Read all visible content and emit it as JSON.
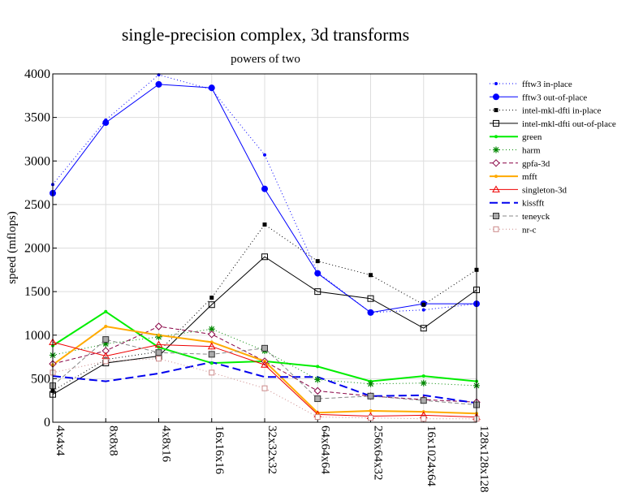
{
  "chart_data": {
    "type": "line",
    "title": "single-precision complex, 3d transforms",
    "subtitle": "powers of two",
    "xlabel": "",
    "ylabel": "speed (mflops)",
    "ylim": [
      0,
      4000
    ],
    "yticks": [
      0,
      500,
      1000,
      1500,
      2000,
      2500,
      3000,
      3500,
      4000
    ],
    "grid": true,
    "legend_position": "right",
    "categories": [
      "4x4x4",
      "8x8x8",
      "4x8x16",
      "16x16x16",
      "32x32x32",
      "64x64x64",
      "256x64x32",
      "16x1024x64",
      "128x128x128"
    ],
    "series": [
      {
        "name": "fftw3 in-place",
        "color": "#0000ff",
        "dash": "1,3",
        "width": 1,
        "marker": "dot-small",
        "values": [
          2730,
          3470,
          3990,
          3820,
          3070,
          1720,
          1260,
          1290,
          1360
        ]
      },
      {
        "name": "fftw3 out-of-place",
        "color": "#0000ff",
        "dash": "",
        "width": 1,
        "marker": "dot-large",
        "values": [
          2630,
          3440,
          3880,
          3840,
          2680,
          1710,
          1260,
          1360,
          1360
        ]
      },
      {
        "name": "intel-mkl-dfti in-place",
        "color": "#000000",
        "dash": "1,3",
        "width": 1,
        "marker": "square-filled",
        "values": [
          360,
          720,
          810,
          1430,
          2270,
          1850,
          1690,
          1350,
          1750
        ]
      },
      {
        "name": "intel-mkl-dfti out-of-place",
        "color": "#000000",
        "dash": "",
        "width": 1,
        "marker": "square-open",
        "values": [
          320,
          680,
          760,
          1350,
          1900,
          1500,
          1420,
          1080,
          1520
        ]
      },
      {
        "name": "green",
        "color": "#00ee00",
        "dash": "",
        "width": 2,
        "marker": "dot-small",
        "values": [
          880,
          1270,
          860,
          680,
          700,
          640,
          470,
          530,
          470
        ]
      },
      {
        "name": "harm",
        "color": "#008800",
        "dash": "1,3",
        "width": 1,
        "marker": "star",
        "values": [
          770,
          900,
          980,
          1070,
          820,
          490,
          440,
          450,
          420
        ]
      },
      {
        "name": "gpfa-3d",
        "color": "#880044",
        "dash": "5,3",
        "width": 1,
        "marker": "diamond",
        "values": [
          670,
          820,
          1100,
          1010,
          700,
          360,
          300,
          260,
          230
        ]
      },
      {
        "name": "mfft",
        "color": "#ffaa00",
        "dash": "",
        "width": 2,
        "marker": "dot-small",
        "values": [
          660,
          1100,
          1000,
          920,
          700,
          110,
          130,
          120,
          100
        ]
      },
      {
        "name": "singleton-3d",
        "color": "#ee0000",
        "dash": "",
        "width": 1,
        "marker": "triangle",
        "values": [
          920,
          760,
          890,
          870,
          660,
          90,
          70,
          80,
          60
        ]
      },
      {
        "name": "kissfft",
        "color": "#0000ee",
        "dash": "10,5",
        "width": 2,
        "marker": "none",
        "values": [
          530,
          470,
          560,
          690,
          520,
          520,
          300,
          310,
          220
        ]
      },
      {
        "name": "teneyck",
        "color": "#888888",
        "dash": "5,3",
        "width": 1,
        "marker": "square-open-gray",
        "values": [
          420,
          950,
          800,
          780,
          850,
          270,
          300,
          250,
          200
        ]
      },
      {
        "name": "nr-c",
        "color": "#cc8888",
        "dash": "1,3",
        "width": 1,
        "marker": "square-open-pink",
        "values": [
          570,
          700,
          730,
          570,
          390,
          60,
          50,
          40,
          40
        ]
      }
    ]
  }
}
